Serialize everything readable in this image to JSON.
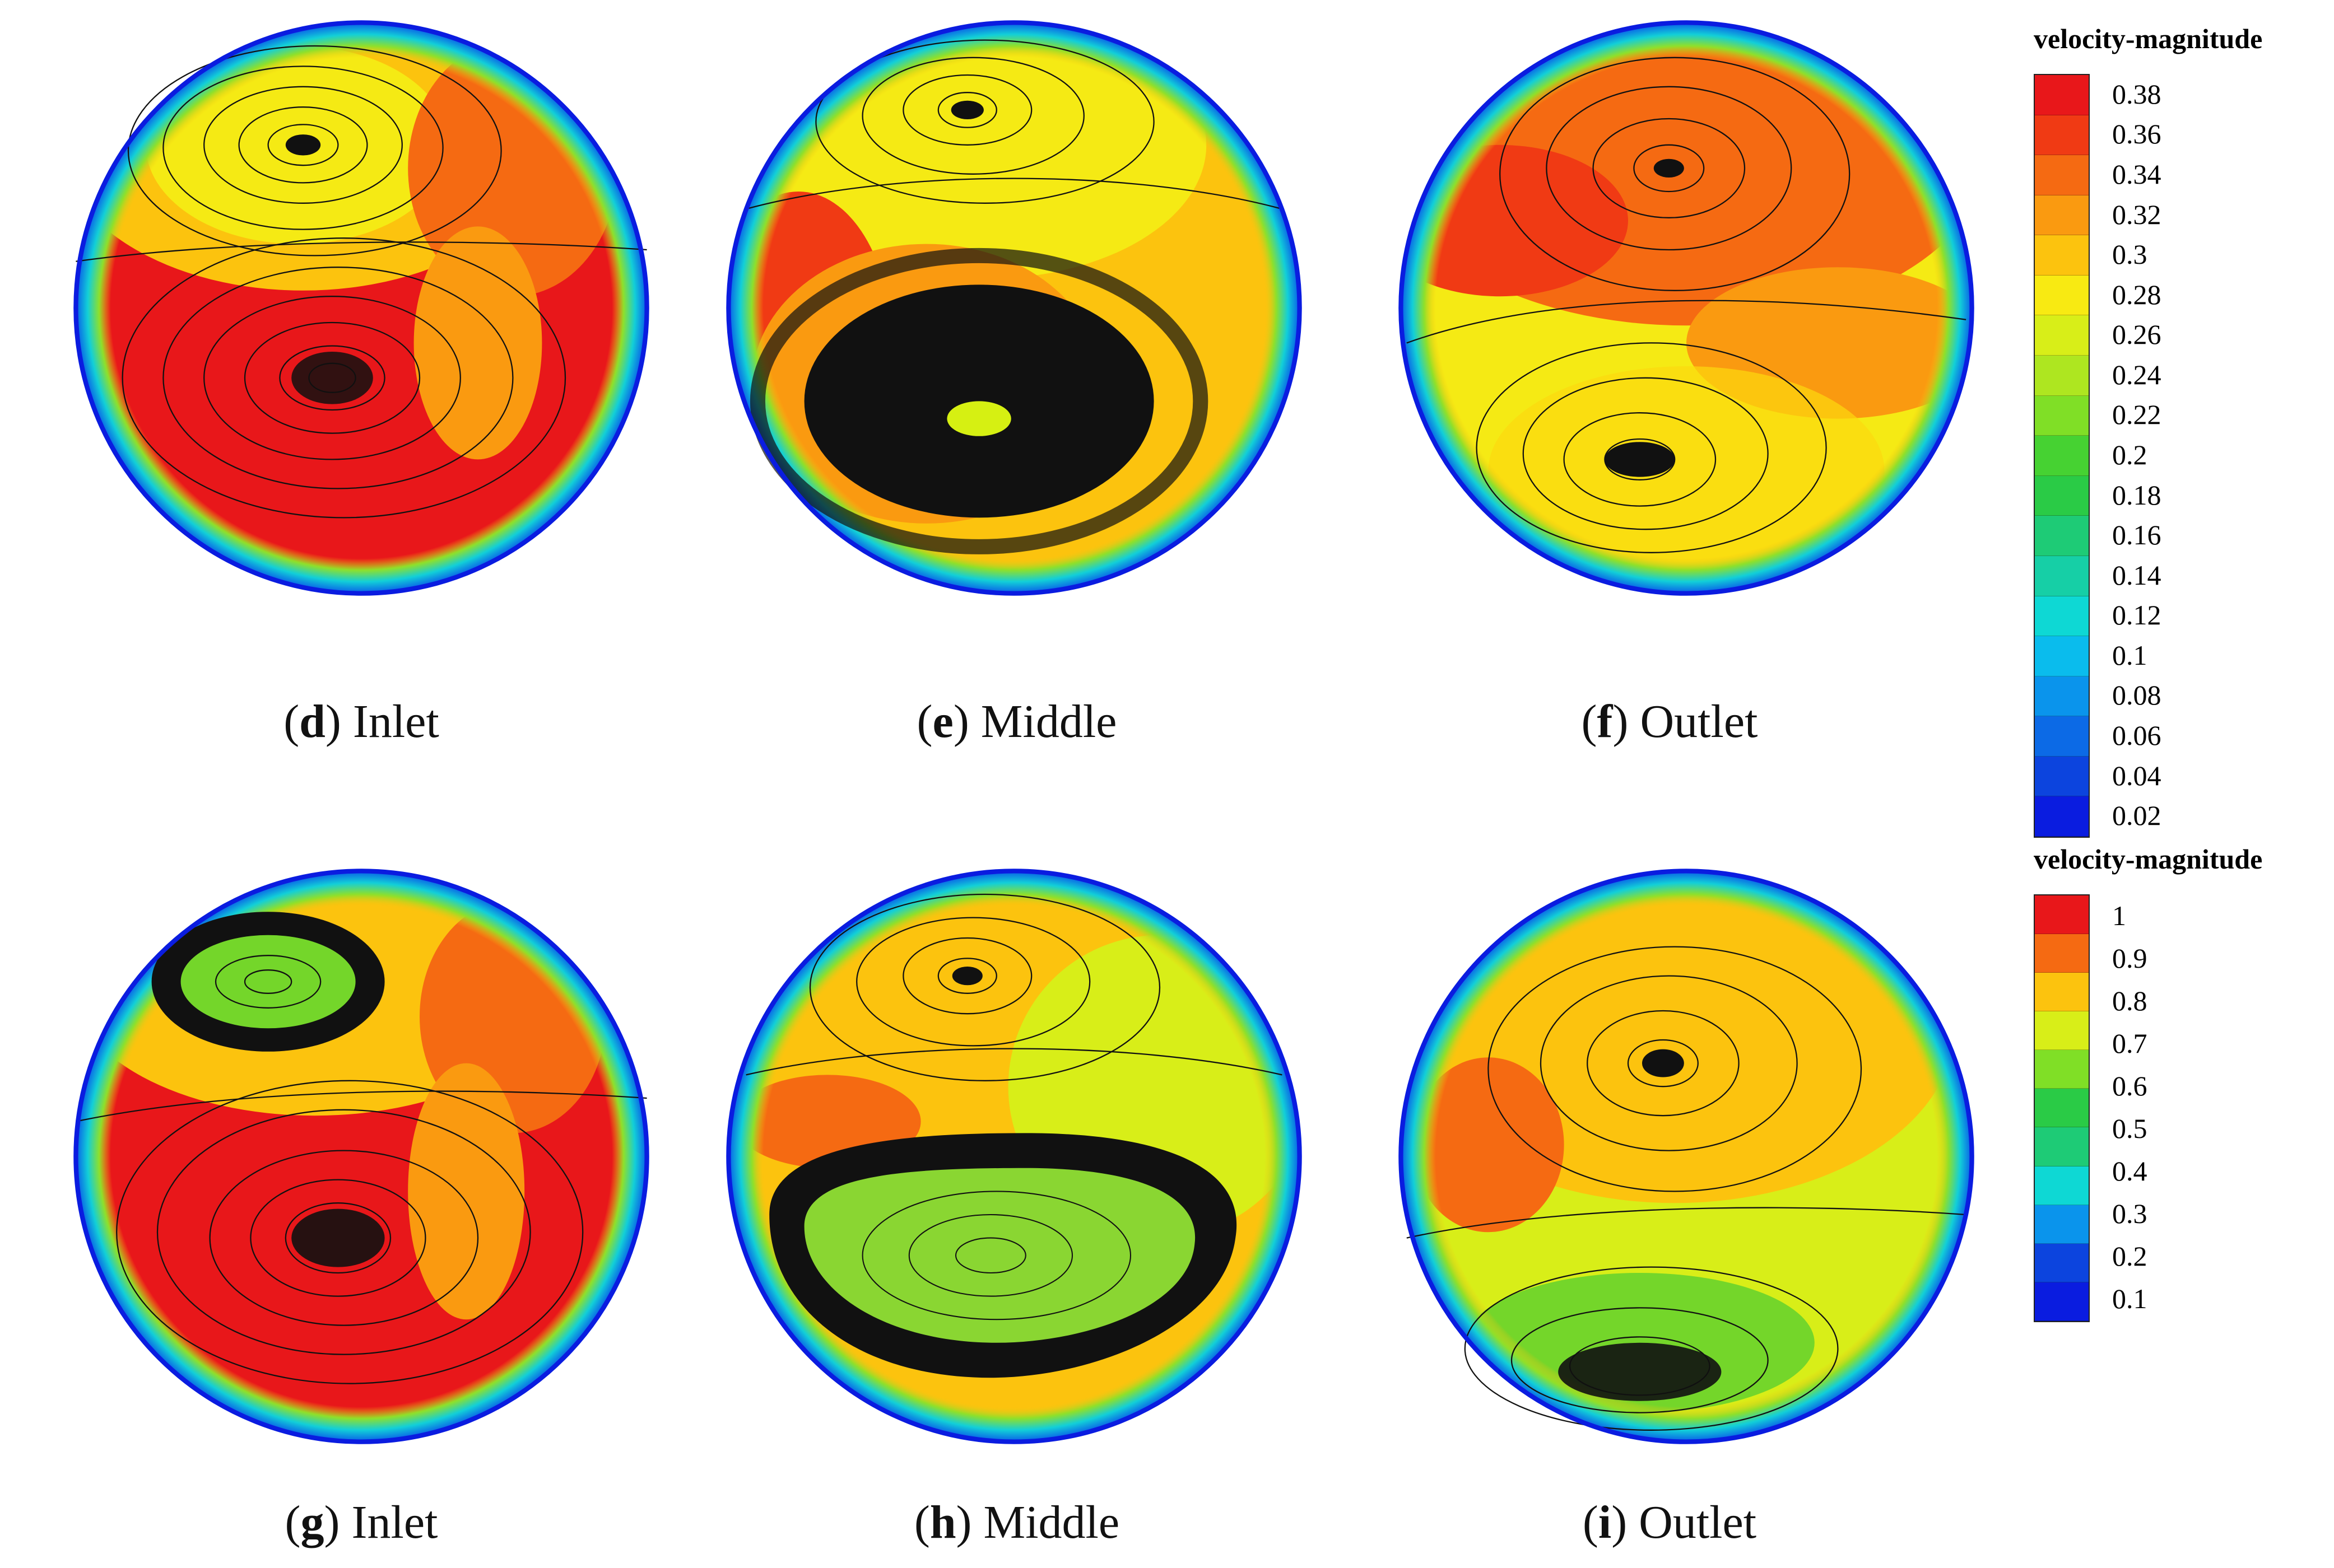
{
  "panels": [
    {
      "letter": "d",
      "label": "Inlet"
    },
    {
      "letter": "e",
      "label": "Middle"
    },
    {
      "letter": "f",
      "label": "Outlet"
    },
    {
      "letter": "g",
      "label": "Inlet"
    },
    {
      "letter": "h",
      "label": "Middle"
    },
    {
      "letter": "i",
      "label": "Outlet"
    }
  ],
  "legends": [
    {
      "title": "velocity-magnitude",
      "ticks": [
        "0.38",
        "0.36",
        "0.34",
        "0.32",
        "0.3",
        "0.28",
        "0.26",
        "0.24",
        "0.22",
        "0.2",
        "0.18",
        "0.16",
        "0.14",
        "0.12",
        "0.1",
        "0.08",
        "0.06",
        "0.04",
        "0.02"
      ],
      "colors": [
        "#e8171a",
        "#f03a14",
        "#f56a12",
        "#fa9a10",
        "#fcc30e",
        "#f8ea12",
        "#d8ee18",
        "#aee620",
        "#80df26",
        "#46d232",
        "#2acb46",
        "#1ecb76",
        "#16cfa6",
        "#0ed8d4",
        "#0abced",
        "#0a94ec",
        "#0c6ae6",
        "#0c44de",
        "#0a1ce0"
      ]
    },
    {
      "title": "velocity-magnitude",
      "ticks": [
        "1",
        "0.9",
        "0.8",
        "0.7",
        "0.6",
        "0.5",
        "0.4",
        "0.3",
        "0.2",
        "0.1"
      ],
      "colors": [
        "#e8171a",
        "#f56a12",
        "#fcc30e",
        "#d8ee18",
        "#80df26",
        "#2acb46",
        "#1ecb76",
        "#0ed8d4",
        "#0a94ec",
        "#0c44de",
        "#0a1ce0"
      ]
    }
  ],
  "palette": {
    "red": "#e8171a",
    "orange": "#f56a12",
    "amber": "#fcc30e",
    "yellow": "#f5ea14",
    "lime": "#c8ee22",
    "green": "#74d62a",
    "cyan": "#12cfd8",
    "blue": "#0a44e0"
  }
}
